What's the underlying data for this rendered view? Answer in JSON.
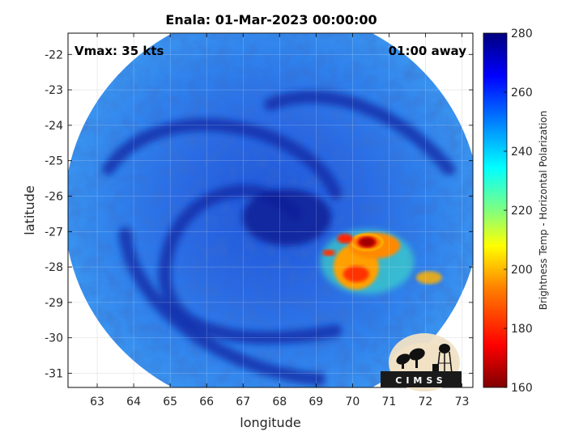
{
  "title": "Enala: 01-Mar-2023 00:00:00",
  "annotations": {
    "vmax": "Vmax: 35 kts",
    "time_away": "01:00 away"
  },
  "axes": {
    "xlabel": "longitude",
    "ylabel": "latitude",
    "xticks": [
      "63",
      "64",
      "65",
      "66",
      "67",
      "68",
      "69",
      "70",
      "71",
      "72",
      "73"
    ],
    "yticks": [
      "-22",
      "-23",
      "-24",
      "-25",
      "-26",
      "-27",
      "-28",
      "-29",
      "-30",
      "-31"
    ],
    "xlim": [
      62.2,
      73.3
    ],
    "ylim": [
      -31.4,
      -21.4
    ]
  },
  "colorbar": {
    "label": "Brightness Temp - Horizontal Polarization",
    "ticks": [
      "280",
      "260",
      "240",
      "220",
      "200",
      "180",
      "160"
    ],
    "range": [
      160,
      280
    ],
    "colormap": "jet-like",
    "colors": [
      "#7f0000",
      "#ff0000",
      "#ff8000",
      "#ffff00",
      "#80ff80",
      "#00ffff",
      "#0080ff",
      "#0000ff",
      "#00007f"
    ]
  },
  "logo": {
    "text": "CIMSS",
    "icon": "cimss-logo-icon"
  },
  "image": {
    "description_icon": "microwave-swath-image",
    "swath_center": [
      67.8,
      -26.4
    ],
    "swath_radius_deg": 5.7,
    "background_temp": 250,
    "features": [
      {
        "type": "cold-core",
        "lon": 70.4,
        "lat": -27.3,
        "temp": 170
      },
      {
        "type": "convection",
        "lon": 70.1,
        "lat": -28.0,
        "temp": 195
      },
      {
        "type": "spiral-band",
        "lon": 66.8,
        "lat": -25.6,
        "temp": 265
      }
    ]
  }
}
